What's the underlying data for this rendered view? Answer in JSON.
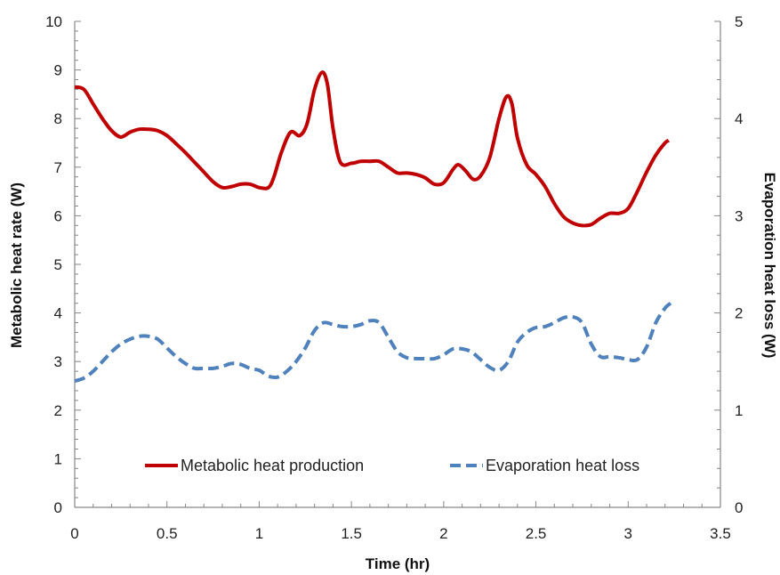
{
  "chart_data": {
    "type": "line",
    "title": "",
    "xlabel": "Time (hr)",
    "ylabel": "Metabolic heat rate (W)",
    "y2label": "Evaporation heat loss (W)",
    "xlim": [
      0,
      3.5
    ],
    "ylim": [
      0,
      10
    ],
    "y2lim": [
      0,
      5
    ],
    "xticks": [
      "0",
      "0.5",
      "1",
      "1.5",
      "2",
      "2.5",
      "3",
      "3.5"
    ],
    "yticks": [
      "0",
      "1",
      "2",
      "3",
      "4",
      "5",
      "6",
      "7",
      "8",
      "9",
      "10"
    ],
    "y2ticks": [
      "0",
      "1",
      "2",
      "3",
      "4",
      "5"
    ],
    "grid": false,
    "legend_position": "bottom-center",
    "series": [
      {
        "name": "Metabolic heat production",
        "axis": "left",
        "color": "#c00000",
        "style": "solid",
        "points": [
          [
            0.0,
            8.65
          ],
          [
            0.05,
            8.6
          ],
          [
            0.1,
            8.3
          ],
          [
            0.15,
            8.0
          ],
          [
            0.2,
            7.75
          ],
          [
            0.25,
            7.62
          ],
          [
            0.3,
            7.72
          ],
          [
            0.35,
            7.78
          ],
          [
            0.4,
            7.78
          ],
          [
            0.45,
            7.75
          ],
          [
            0.5,
            7.65
          ],
          [
            0.55,
            7.48
          ],
          [
            0.6,
            7.3
          ],
          [
            0.65,
            7.1
          ],
          [
            0.7,
            6.9
          ],
          [
            0.75,
            6.7
          ],
          [
            0.8,
            6.58
          ],
          [
            0.85,
            6.6
          ],
          [
            0.9,
            6.65
          ],
          [
            0.95,
            6.65
          ],
          [
            1.0,
            6.58
          ],
          [
            1.05,
            6.58
          ],
          [
            1.08,
            6.8
          ],
          [
            1.12,
            7.3
          ],
          [
            1.17,
            7.72
          ],
          [
            1.22,
            7.65
          ],
          [
            1.26,
            7.9
          ],
          [
            1.3,
            8.6
          ],
          [
            1.34,
            8.95
          ],
          [
            1.37,
            8.7
          ],
          [
            1.4,
            7.8
          ],
          [
            1.44,
            7.1
          ],
          [
            1.5,
            7.08
          ],
          [
            1.55,
            7.12
          ],
          [
            1.6,
            7.12
          ],
          [
            1.65,
            7.12
          ],
          [
            1.7,
            7.0
          ],
          [
            1.75,
            6.88
          ],
          [
            1.8,
            6.88
          ],
          [
            1.85,
            6.85
          ],
          [
            1.9,
            6.78
          ],
          [
            1.95,
            6.65
          ],
          [
            2.0,
            6.68
          ],
          [
            2.05,
            6.95
          ],
          [
            2.08,
            7.05
          ],
          [
            2.12,
            6.92
          ],
          [
            2.16,
            6.75
          ],
          [
            2.2,
            6.82
          ],
          [
            2.25,
            7.2
          ],
          [
            2.3,
            8.0
          ],
          [
            2.34,
            8.45
          ],
          [
            2.37,
            8.3
          ],
          [
            2.4,
            7.6
          ],
          [
            2.45,
            7.05
          ],
          [
            2.5,
            6.85
          ],
          [
            2.55,
            6.6
          ],
          [
            2.6,
            6.25
          ],
          [
            2.65,
            5.98
          ],
          [
            2.7,
            5.85
          ],
          [
            2.75,
            5.8
          ],
          [
            2.8,
            5.82
          ],
          [
            2.85,
            5.95
          ],
          [
            2.9,
            6.05
          ],
          [
            2.95,
            6.05
          ],
          [
            3.0,
            6.15
          ],
          [
            3.05,
            6.5
          ],
          [
            3.1,
            6.9
          ],
          [
            3.15,
            7.25
          ],
          [
            3.2,
            7.5
          ],
          [
            3.22,
            7.55
          ]
        ]
      },
      {
        "name": "Evaporation heat loss",
        "axis": "right",
        "color": "#4f81bd",
        "style": "dashed",
        "points": [
          [
            0.0,
            1.3
          ],
          [
            0.05,
            1.33
          ],
          [
            0.1,
            1.4
          ],
          [
            0.15,
            1.5
          ],
          [
            0.2,
            1.6
          ],
          [
            0.25,
            1.68
          ],
          [
            0.3,
            1.73
          ],
          [
            0.35,
            1.76
          ],
          [
            0.4,
            1.76
          ],
          [
            0.45,
            1.73
          ],
          [
            0.5,
            1.64
          ],
          [
            0.55,
            1.55
          ],
          [
            0.6,
            1.48
          ],
          [
            0.65,
            1.43
          ],
          [
            0.7,
            1.43
          ],
          [
            0.75,
            1.43
          ],
          [
            0.8,
            1.45
          ],
          [
            0.85,
            1.48
          ],
          [
            0.9,
            1.47
          ],
          [
            0.95,
            1.43
          ],
          [
            1.0,
            1.41
          ],
          [
            1.05,
            1.35
          ],
          [
            1.1,
            1.34
          ],
          [
            1.15,
            1.4
          ],
          [
            1.2,
            1.5
          ],
          [
            1.25,
            1.64
          ],
          [
            1.3,
            1.82
          ],
          [
            1.35,
            1.9
          ],
          [
            1.4,
            1.88
          ],
          [
            1.45,
            1.86
          ],
          [
            1.5,
            1.86
          ],
          [
            1.55,
            1.88
          ],
          [
            1.6,
            1.92
          ],
          [
            1.65,
            1.9
          ],
          [
            1.7,
            1.75
          ],
          [
            1.75,
            1.6
          ],
          [
            1.8,
            1.54
          ],
          [
            1.85,
            1.53
          ],
          [
            1.9,
            1.53
          ],
          [
            1.95,
            1.53
          ],
          [
            2.0,
            1.57
          ],
          [
            2.05,
            1.63
          ],
          [
            2.1,
            1.63
          ],
          [
            2.15,
            1.6
          ],
          [
            2.2,
            1.52
          ],
          [
            2.25,
            1.44
          ],
          [
            2.3,
            1.41
          ],
          [
            2.35,
            1.5
          ],
          [
            2.4,
            1.7
          ],
          [
            2.45,
            1.8
          ],
          [
            2.5,
            1.85
          ],
          [
            2.55,
            1.86
          ],
          [
            2.6,
            1.9
          ],
          [
            2.65,
            1.95
          ],
          [
            2.7,
            1.96
          ],
          [
            2.75,
            1.9
          ],
          [
            2.8,
            1.68
          ],
          [
            2.85,
            1.55
          ],
          [
            2.9,
            1.55
          ],
          [
            2.95,
            1.54
          ],
          [
            3.0,
            1.52
          ],
          [
            3.05,
            1.52
          ],
          [
            3.1,
            1.65
          ],
          [
            3.15,
            1.9
          ],
          [
            3.2,
            2.05
          ],
          [
            3.23,
            2.1
          ]
        ]
      }
    ]
  }
}
